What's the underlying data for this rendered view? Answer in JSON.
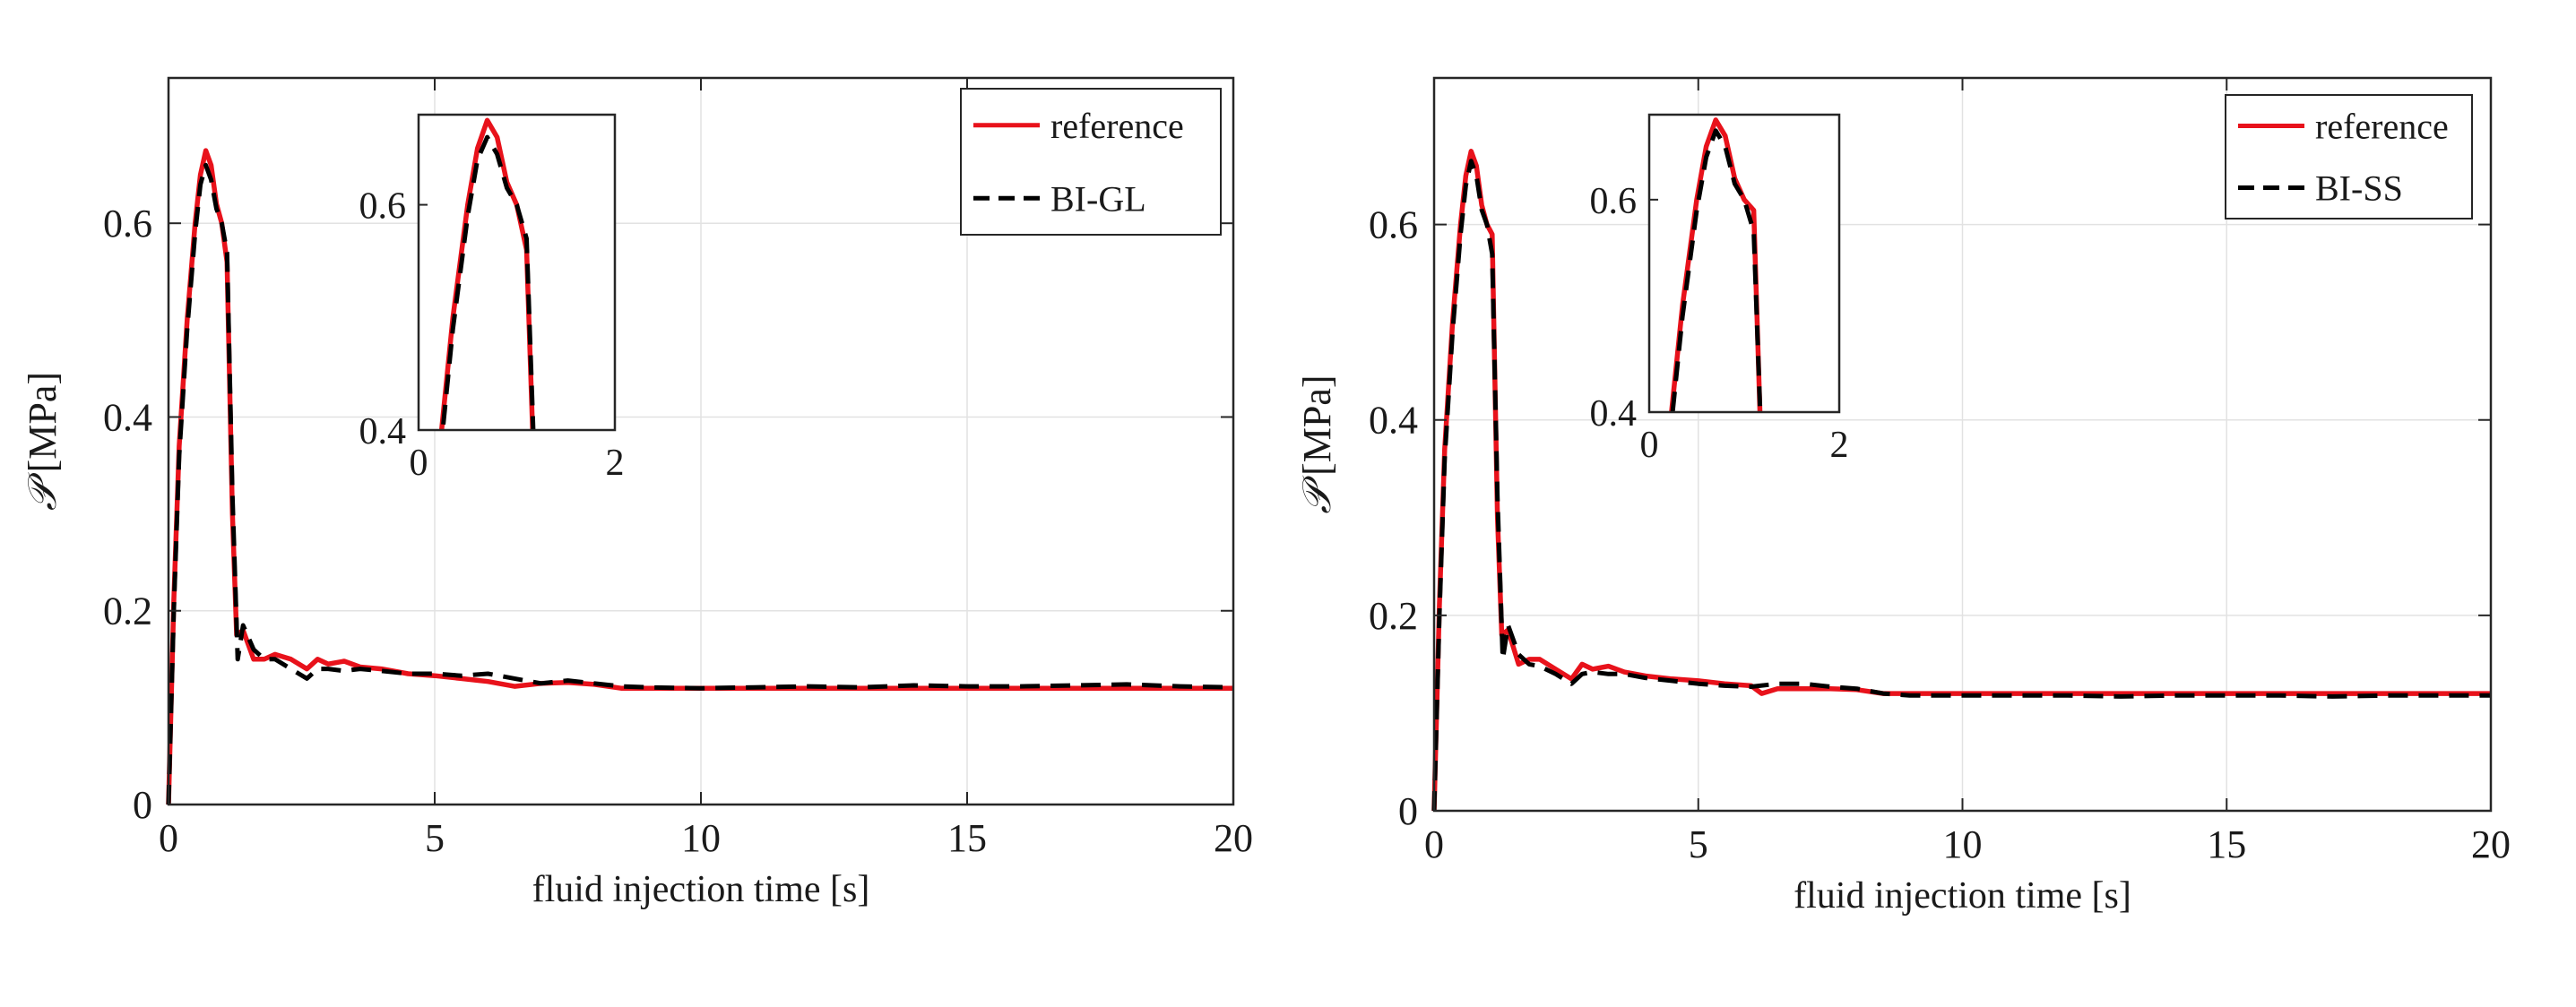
{
  "chart_data": [
    {
      "type": "line",
      "title": "",
      "xlabel": "fluid injection time [s]",
      "ylabel_symbol": "𝒫",
      "ylabel_unit": "[MPa]",
      "xlim": [
        0,
        20
      ],
      "ylim": [
        0,
        0.75
      ],
      "xticks": [
        0,
        5,
        10,
        15,
        20
      ],
      "xtick_labels": [
        "0",
        "5",
        "10",
        "15",
        "20"
      ],
      "yticks": [
        0,
        0.2,
        0.4,
        0.6
      ],
      "ytick_labels": [
        "0",
        "0.2",
        "0.4",
        "0.6"
      ],
      "grid": true,
      "legend_position": "top-right",
      "series": [
        {
          "name": "reference",
          "color": "#e8121b",
          "style": "solid",
          "x": [
            0,
            0.1,
            0.2,
            0.35,
            0.5,
            0.6,
            0.7,
            0.8,
            0.9,
            1.0,
            1.1,
            1.2,
            1.28,
            1.4,
            1.6,
            1.8,
            2.0,
            2.3,
            2.6,
            2.8,
            3.0,
            3.3,
            3.6,
            4.0,
            4.5,
            5.0,
            5.5,
            6.0,
            6.5,
            7.0,
            7.5,
            8.0,
            8.5,
            9.0,
            10.0,
            11.0,
            12.0,
            13.0,
            14.0,
            15.0,
            16.0,
            17.0,
            18.0,
            19.0,
            20.0
          ],
          "values": [
            0,
            0.21,
            0.37,
            0.5,
            0.6,
            0.65,
            0.675,
            0.66,
            0.62,
            0.6,
            0.56,
            0.3,
            0.175,
            0.18,
            0.15,
            0.15,
            0.155,
            0.15,
            0.14,
            0.15,
            0.145,
            0.148,
            0.142,
            0.14,
            0.135,
            0.133,
            0.13,
            0.127,
            0.122,
            0.125,
            0.126,
            0.124,
            0.12,
            0.12,
            0.12,
            0.12,
            0.12,
            0.12,
            0.12,
            0.12,
            0.12,
            0.12,
            0.12,
            0.12,
            0.12
          ]
        },
        {
          "name": "BI-GL",
          "color": "#000000",
          "style": "dashed",
          "x": [
            0,
            0.1,
            0.2,
            0.35,
            0.5,
            0.6,
            0.7,
            0.8,
            0.9,
            1.0,
            1.1,
            1.2,
            1.3,
            1.4,
            1.6,
            1.8,
            2.0,
            2.3,
            2.6,
            2.8,
            3.0,
            3.3,
            3.6,
            4.0,
            4.5,
            5.0,
            5.5,
            6.0,
            6.5,
            7.0,
            7.5,
            8.0,
            8.5,
            9.0,
            10.0,
            11.0,
            12.0,
            13.0,
            14.0,
            15.0,
            16.0,
            17.0,
            18.0,
            19.0,
            20.0
          ],
          "values": [
            0,
            0.2,
            0.36,
            0.49,
            0.59,
            0.64,
            0.66,
            0.645,
            0.615,
            0.6,
            0.57,
            0.32,
            0.15,
            0.185,
            0.16,
            0.15,
            0.15,
            0.14,
            0.13,
            0.14,
            0.14,
            0.138,
            0.14,
            0.138,
            0.135,
            0.135,
            0.133,
            0.135,
            0.13,
            0.125,
            0.128,
            0.125,
            0.122,
            0.121,
            0.12,
            0.121,
            0.122,
            0.121,
            0.123,
            0.122,
            0.122,
            0.123,
            0.124,
            0.122,
            0.121
          ]
        }
      ],
      "inset": {
        "xlim": [
          0,
          2
        ],
        "ylim": [
          0.4,
          0.68
        ],
        "xticks": [
          0,
          2
        ],
        "xtick_labels": [
          "0",
          "2"
        ],
        "yticks": [
          0.4,
          0.6
        ],
        "ytick_labels": [
          "0.4",
          "0.6"
        ]
      }
    },
    {
      "type": "line",
      "title": "",
      "xlabel": "fluid injection time [s]",
      "ylabel_symbol": "𝒫",
      "ylabel_unit": "[MPa]",
      "xlim": [
        0,
        20
      ],
      "ylim": [
        0,
        0.75
      ],
      "xticks": [
        0,
        5,
        10,
        15,
        20
      ],
      "xtick_labels": [
        "0",
        "5",
        "10",
        "15",
        "20"
      ],
      "yticks": [
        0,
        0.2,
        0.4,
        0.6
      ],
      "ytick_labels": [
        "0",
        "0.2",
        "0.4",
        "0.6"
      ],
      "grid": true,
      "legend_position": "top-right",
      "series": [
        {
          "name": "reference",
          "color": "#e8121b",
          "style": "solid",
          "x": [
            0,
            0.1,
            0.2,
            0.35,
            0.5,
            0.6,
            0.7,
            0.8,
            0.9,
            1.0,
            1.1,
            1.2,
            1.28,
            1.4,
            1.6,
            1.8,
            2.0,
            2.3,
            2.6,
            2.8,
            3.0,
            3.3,
            3.6,
            4.0,
            4.5,
            5.0,
            5.5,
            6.0,
            6.2,
            6.5,
            7.0,
            7.5,
            8.0,
            8.5,
            9.0,
            10.0,
            11.0,
            12.0,
            13.0,
            14.0,
            15.0,
            16.0,
            17.0,
            18.0,
            19.0,
            20.0
          ],
          "values": [
            0,
            0.21,
            0.37,
            0.5,
            0.6,
            0.65,
            0.675,
            0.66,
            0.62,
            0.6,
            0.59,
            0.3,
            0.18,
            0.185,
            0.15,
            0.155,
            0.155,
            0.145,
            0.135,
            0.15,
            0.145,
            0.148,
            0.142,
            0.138,
            0.135,
            0.133,
            0.13,
            0.128,
            0.12,
            0.125,
            0.125,
            0.125,
            0.124,
            0.12,
            0.12,
            0.12,
            0.12,
            0.12,
            0.12,
            0.12,
            0.12,
            0.12,
            0.12,
            0.12,
            0.12,
            0.12
          ]
        },
        {
          "name": "BI-SS",
          "color": "#000000",
          "style": "dashed",
          "x": [
            0,
            0.1,
            0.2,
            0.35,
            0.5,
            0.6,
            0.7,
            0.8,
            0.9,
            1.0,
            1.1,
            1.2,
            1.3,
            1.4,
            1.6,
            1.8,
            2.0,
            2.3,
            2.6,
            2.8,
            3.0,
            3.3,
            3.6,
            4.0,
            4.5,
            5.0,
            5.5,
            6.0,
            6.5,
            7.0,
            7.5,
            8.0,
            8.5,
            9.0,
            10.0,
            11.0,
            12.0,
            13.0,
            14.0,
            15.0,
            16.0,
            17.0,
            18.0,
            19.0,
            20.0
          ],
          "values": [
            0,
            0.2,
            0.36,
            0.49,
            0.59,
            0.64,
            0.665,
            0.65,
            0.615,
            0.6,
            0.57,
            0.32,
            0.155,
            0.19,
            0.16,
            0.15,
            0.148,
            0.14,
            0.13,
            0.14,
            0.142,
            0.14,
            0.14,
            0.136,
            0.133,
            0.13,
            0.128,
            0.127,
            0.13,
            0.13,
            0.127,
            0.125,
            0.12,
            0.118,
            0.118,
            0.118,
            0.118,
            0.117,
            0.118,
            0.118,
            0.118,
            0.117,
            0.118,
            0.118,
            0.118
          ]
        }
      ],
      "inset": {
        "xlim": [
          0,
          2
        ],
        "ylim": [
          0.4,
          0.68
        ],
        "xticks": [
          0,
          2
        ],
        "xtick_labels": [
          "0",
          "2"
        ],
        "yticks": [
          0.4,
          0.6
        ],
        "ytick_labels": [
          "0.4",
          "0.6"
        ]
      }
    }
  ]
}
